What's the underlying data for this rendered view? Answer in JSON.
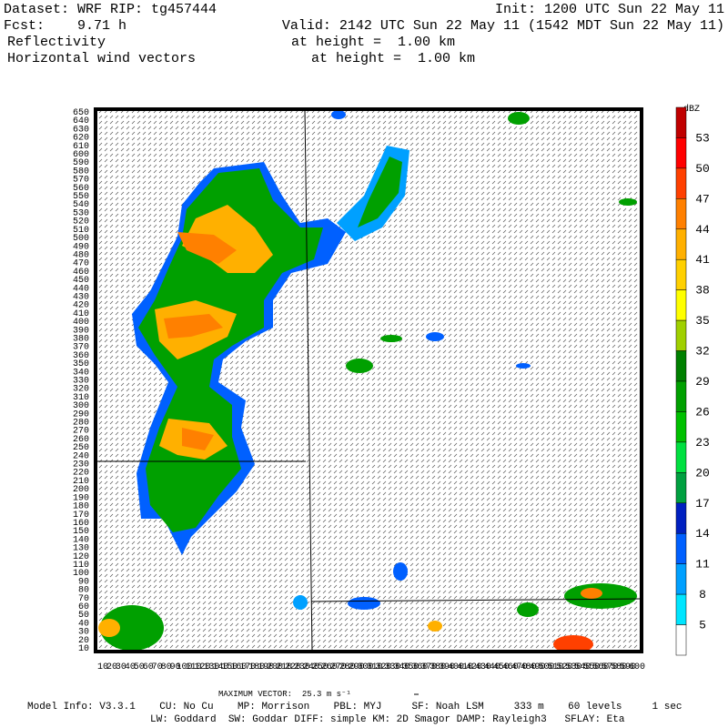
{
  "header": {
    "dataset": "Dataset: WRF  RIP: tg457444",
    "init": "Init: 1200 UTC Sun 22 May 11",
    "fcst": "Fcst:    9.71 h",
    "valid": "Valid: 2142 UTC Sun 22 May 11 (1542 MDT Sun 22 May 11)",
    "field1": "Reflectivity",
    "height1": "at height =  1.00 km",
    "field2": "Horizontal wind vectors",
    "height2": "at height =  1.00 km"
  },
  "y_axis": {
    "labels": [
      "650",
      "640",
      "630",
      "620",
      "610",
      "600",
      "590",
      "580",
      "570",
      "560",
      "550",
      "540",
      "530",
      "520",
      "510",
      "500",
      "490",
      "480",
      "470",
      "460",
      "450",
      "440",
      "430",
      "420",
      "410",
      "400",
      "390",
      "380",
      "370",
      "360",
      "350",
      "340",
      "330",
      "320",
      "310",
      "300",
      "290",
      "280",
      "270",
      "260",
      "250",
      "240",
      "230",
      "220",
      "210",
      "200",
      "190",
      "180",
      "170",
      "160",
      "150",
      "140",
      "130",
      "120",
      "110",
      "100",
      "90",
      "80",
      "70",
      "60",
      "50",
      "40",
      "30",
      "20",
      "10"
    ]
  },
  "x_axis": {
    "labels": [
      "10",
      "20",
      "30",
      "40",
      "50",
      "60",
      "70",
      "80",
      "90",
      "100",
      "110",
      "120",
      "130",
      "140",
      "150",
      "160",
      "170",
      "180",
      "190",
      "200",
      "210",
      "220",
      "230",
      "240",
      "250",
      "260",
      "270",
      "280",
      "290",
      "300",
      "310",
      "320",
      "330",
      "340",
      "350",
      "360",
      "370",
      "380",
      "390",
      "400",
      "410",
      "420",
      "430",
      "440",
      "450",
      "460",
      "470",
      "480",
      "490",
      "500",
      "510",
      "520",
      "530",
      "540",
      "550",
      "560",
      "570",
      "580",
      "590",
      "600"
    ]
  },
  "colorbar": {
    "unit": "dBZ",
    "labels": [
      "53",
      "50",
      "47",
      "44",
      "41",
      "38",
      "35",
      "32",
      "29",
      "26",
      "23",
      "20",
      "17",
      "14",
      "11",
      "8",
      "5"
    ],
    "colors": [
      "#c00000",
      "#ff0000",
      "#ff4000",
      "#ff8000",
      "#ffb000",
      "#ffd000",
      "#ffff00",
      "#a0d000",
      "#008000",
      "#00a000",
      "#00c000",
      "#00e040",
      "#00a040",
      "#0020c0",
      "#0060ff",
      "#00a0ff",
      "#00e5ff",
      "#ffffff"
    ]
  },
  "footer": {
    "max_vector": "MAXIMUM VECTOR:  25.3 m s⁻¹",
    "model_info": "Model Info: V3.3.1    CU: No Cu    MP: Morrison    PBL: MYJ     SF: Noah LSM     333 m    60 levels     1 sec",
    "physics": "LW: Goddard  SW: Goddar DIFF: simple KM: 2D Smagor DAMP: Rayleigh3   SFLAY: Eta"
  }
}
